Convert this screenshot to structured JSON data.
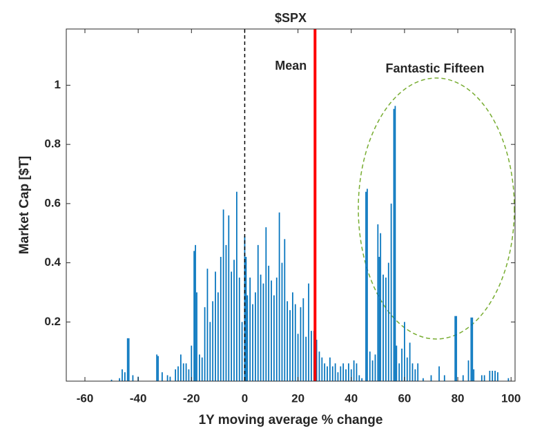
{
  "chart_data": {
    "type": "bar",
    "title": "$SPX",
    "xlabel": "1Y moving average % change",
    "ylabel": "Market Cap [$T]",
    "color": "#0072bd",
    "x": [
      -50,
      -47,
      -46,
      -45,
      -44,
      -43.5,
      -42,
      -40,
      -33,
      -32.5,
      -31,
      -29,
      -28,
      -26,
      -25,
      -24,
      -23,
      -22,
      -21,
      -20,
      -19,
      -18.5,
      -18,
      -17,
      -16,
      -15,
      -14,
      -13,
      -12,
      -11,
      -10,
      -9,
      -8,
      -7,
      -6,
      -5,
      -4,
      -3,
      -2,
      -1,
      0,
      0.5,
      1,
      2,
      3,
      4,
      5,
      6,
      7,
      8,
      9,
      10,
      11,
      12,
      13,
      14,
      15,
      16,
      17,
      18,
      19,
      20,
      21,
      22,
      23,
      24,
      25,
      26,
      27,
      28,
      29,
      30,
      31,
      32,
      33,
      34,
      35,
      36,
      37,
      38,
      39,
      40,
      41,
      42,
      43,
      44,
      45.5,
      46,
      47,
      48,
      49,
      50,
      50.5,
      51,
      52,
      53,
      54,
      55,
      56,
      56.5,
      57,
      58,
      59,
      60,
      61,
      62,
      63,
      64,
      65,
      67,
      70,
      73,
      75,
      79,
      79.5,
      82,
      84,
      85,
      85.5,
      86,
      89,
      90,
      92,
      93,
      94,
      95,
      99
    ],
    "values": [
      0.005,
      0.01,
      0.04,
      0.03,
      0.145,
      0.145,
      0.02,
      0.015,
      0.09,
      0.085,
      0.03,
      0.02,
      0.015,
      0.04,
      0.05,
      0.09,
      0.06,
      0.06,
      0.04,
      0.12,
      0.44,
      0.46,
      0.3,
      0.09,
      0.08,
      0.25,
      0.38,
      0.2,
      0.27,
      0.37,
      0.3,
      0.42,
      0.58,
      0.46,
      0.56,
      0.37,
      0.41,
      0.64,
      0.35,
      0.2,
      0.49,
      0.42,
      0.29,
      0.35,
      0.26,
      0.3,
      0.46,
      0.36,
      0.33,
      0.52,
      0.39,
      0.34,
      0.29,
      0.35,
      0.57,
      0.4,
      0.48,
      0.27,
      0.24,
      0.3,
      0.26,
      0.16,
      0.25,
      0.28,
      0.15,
      0.33,
      0.17,
      0.17,
      0.14,
      0.1,
      0.08,
      0.06,
      0.05,
      0.08,
      0.05,
      0.06,
      0.03,
      0.05,
      0.06,
      0.04,
      0.06,
      0.04,
      0.07,
      0.06,
      0.02,
      0.01,
      0.64,
      0.65,
      0.1,
      0.07,
      0.09,
      0.53,
      0.42,
      0.5,
      0.36,
      0.35,
      0.4,
      0.6,
      0.92,
      0.93,
      0.12,
      0.06,
      0.11,
      0.2,
      0.08,
      0.13,
      0.06,
      0.04,
      0.06,
      0.01,
      0.02,
      0.05,
      0.02,
      0.22,
      0.22,
      0.02,
      0.07,
      0.215,
      0.215,
      0.04,
      0.02,
      0.02,
      0.035,
      0.035,
      0.035,
      0.03,
      0.01
    ],
    "xlim": [
      -67,
      101.5
    ],
    "xticks": [
      -60,
      -40,
      -20,
      0,
      20,
      40,
      60,
      80,
      100
    ],
    "ylim": [
      0,
      1.19
    ],
    "yticks": [
      0.2,
      0.4,
      0.6,
      0.8,
      1
    ],
    "mean": 26.4,
    "mean_label": "Mean",
    "mean_color": "#ff0000",
    "annotation": "Fantastic Fifteen"
  }
}
